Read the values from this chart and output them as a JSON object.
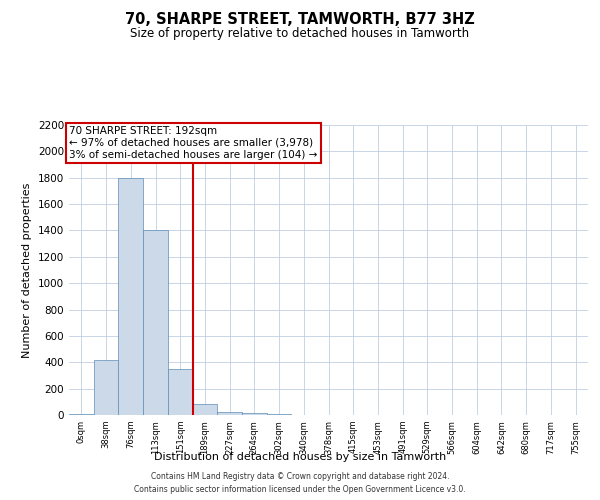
{
  "title": "70, SHARPE STREET, TAMWORTH, B77 3HZ",
  "subtitle": "Size of property relative to detached houses in Tamworth",
  "xlabel": "Distribution of detached houses by size in Tamworth",
  "ylabel": "Number of detached properties",
  "bin_labels": [
    "0sqm",
    "38sqm",
    "76sqm",
    "113sqm",
    "151sqm",
    "189sqm",
    "227sqm",
    "264sqm",
    "302sqm",
    "340sqm",
    "378sqm",
    "415sqm",
    "453sqm",
    "491sqm",
    "529sqm",
    "566sqm",
    "604sqm",
    "642sqm",
    "680sqm",
    "717sqm",
    "755sqm"
  ],
  "bar_heights": [
    10,
    420,
    1800,
    1400,
    350,
    80,
    25,
    15,
    5,
    0,
    0,
    0,
    0,
    0,
    0,
    0,
    0,
    0,
    0,
    0,
    0
  ],
  "bar_color": "#ccd9e8",
  "bar_edge_color": "#5b8db8",
  "red_line_bin": 5,
  "annotation_text": "70 SHARPE STREET: 192sqm\n← 97% of detached houses are smaller (3,978)\n3% of semi-detached houses are larger (104) →",
  "annotation_box_color": "#ffffff",
  "annotation_box_edge": "#cc0000",
  "ylim": [
    0,
    2200
  ],
  "yticks": [
    0,
    200,
    400,
    600,
    800,
    1000,
    1200,
    1400,
    1600,
    1800,
    2000,
    2200
  ],
  "footer_line1": "Contains HM Land Registry data © Crown copyright and database right 2024.",
  "footer_line2": "Contains public sector information licensed under the Open Government Licence v3.0.",
  "bg_color": "#ffffff",
  "grid_color": "#c0cfe0"
}
